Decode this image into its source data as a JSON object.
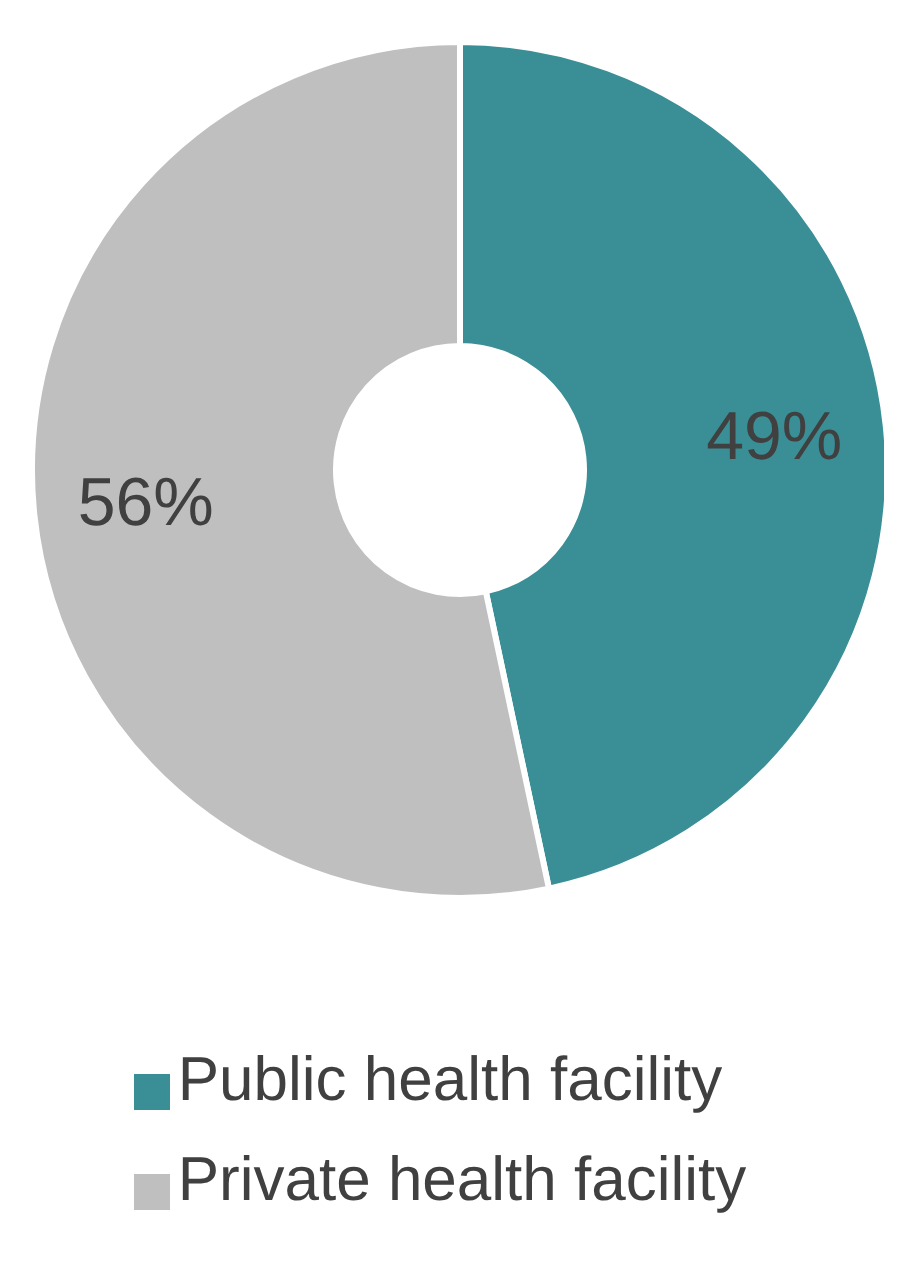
{
  "chart_data": {
    "type": "donut",
    "categories": [
      "Public health facility",
      "Private health facility"
    ],
    "values": [
      49,
      56
    ],
    "colors": [
      "#3a8f97",
      "#bfbfbf"
    ],
    "value_labels": [
      "49%",
      "56%"
    ],
    "legend": "bottom"
  }
}
